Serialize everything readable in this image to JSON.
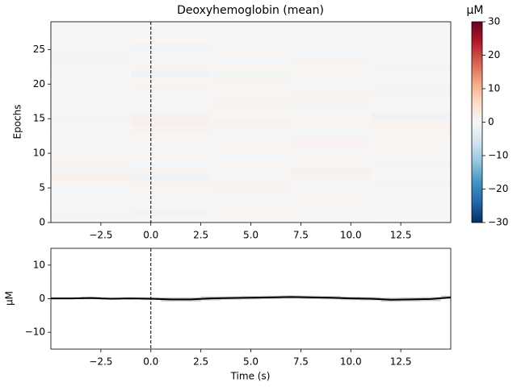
{
  "chart_data": [
    {
      "type": "heatmap",
      "title": "Deoxyhemoglobin (mean)",
      "ylabel": "Epochs",
      "xlim": [
        -5,
        15
      ],
      "ylim": [
        0,
        29
      ],
      "yticks": [
        0,
        5,
        10,
        15,
        20,
        25
      ],
      "xticks": [
        {
          "value": -2.5,
          "label": "−2.5"
        },
        {
          "value": 0,
          "label": "0.0"
        },
        {
          "value": 2.5,
          "label": "2.5"
        },
        {
          "value": 5,
          "label": "5.0"
        },
        {
          "value": 7.5,
          "label": "7.5"
        },
        {
          "value": 10,
          "label": "10.0"
        },
        {
          "value": 12.5,
          "label": "12.5"
        }
      ],
      "vline": 0,
      "x_bins": [
        -5,
        -1,
        3,
        7,
        11,
        15
      ],
      "z": [
        [
          -0.5,
          0.3,
          0.2,
          0.4,
          0.1
        ],
        [
          0.4,
          -0.8,
          0.3,
          0.2,
          -0.3
        ],
        [
          -0.3,
          0.2,
          0.5,
          -0.2,
          0.3
        ],
        [
          0.2,
          -0.5,
          -0.3,
          0.6,
          -0.4
        ],
        [
          -0.4,
          0.3,
          0.4,
          -0.3,
          0.2
        ],
        [
          0.3,
          0.6,
          0.8,
          0.2,
          -0.6
        ],
        [
          1.2,
          -0.9,
          -0.2,
          0.4,
          0.1
        ],
        [
          -0.5,
          0.4,
          0.3,
          1.0,
          -0.2
        ],
        [
          0.6,
          -0.3,
          0.5,
          0.2,
          0.4
        ],
        [
          -0.2,
          0.5,
          -0.4,
          0.3,
          -0.3
        ],
        [
          0.3,
          -0.4,
          0.6,
          -0.2,
          0.5
        ],
        [
          -0.6,
          0.2,
          0.3,
          0.8,
          -0.2
        ],
        [
          0.2,
          0.5,
          -0.3,
          0.4,
          0.3
        ],
        [
          -0.3,
          0.9,
          0.4,
          -0.3,
          0.6
        ],
        [
          0.4,
          1.4,
          0.9,
          0.5,
          0.8
        ],
        [
          -0.5,
          1.0,
          0.5,
          0.3,
          -1.2
        ],
        [
          0.3,
          -0.2,
          0.4,
          -0.5,
          0.2
        ],
        [
          -0.4,
          0.3,
          0.8,
          0.6,
          -0.3
        ],
        [
          0.5,
          -0.3,
          0.3,
          0.9,
          0.4
        ],
        [
          -0.3,
          0.4,
          -0.2,
          0.2,
          -0.7
        ],
        [
          0.2,
          0.5,
          0.6,
          -0.3,
          0.3
        ],
        [
          -0.4,
          -1.0,
          -0.5,
          0.3,
          -0.2
        ],
        [
          0.3,
          0.4,
          0.5,
          0.2,
          0.4
        ],
        [
          -0.5,
          0.2,
          -0.3,
          0.6,
          -0.2
        ],
        [
          0.4,
          -0.3,
          0.5,
          -0.4,
          0.3
        ],
        [
          -0.3,
          -0.8,
          0.2,
          0.4,
          -0.3
        ],
        [
          0.2,
          0.5,
          -0.4,
          0.3,
          0.5
        ],
        [
          -0.4,
          -0.3,
          0.3,
          -0.2,
          0.2
        ],
        [
          0.3,
          0.2,
          -0.5,
          0.4,
          -0.3
        ]
      ],
      "colorbar": {
        "label": "µM",
        "lim": [
          -30,
          30
        ],
        "ticks": [
          {
            "value": -30,
            "label": "−30"
          },
          {
            "value": -20,
            "label": "−20"
          },
          {
            "value": -10,
            "label": "−10"
          },
          0,
          10,
          20,
          30
        ]
      }
    },
    {
      "type": "line",
      "ylabel": "µM",
      "xlabel": "Time (s)",
      "color": "#000000",
      "xlim": [
        -5,
        15
      ],
      "ylim": [
        -15,
        15
      ],
      "yticks": [
        {
          "value": -10,
          "label": "−10"
        },
        0,
        10
      ],
      "xticks": [
        {
          "value": -2.5,
          "label": "−2.5"
        },
        {
          "value": 0,
          "label": "0.0"
        },
        {
          "value": 2.5,
          "label": "2.5"
        },
        {
          "value": 5,
          "label": "5.0"
        },
        {
          "value": 7.5,
          "label": "7.5"
        },
        {
          "value": 10,
          "label": "10.0"
        },
        {
          "value": 12.5,
          "label": "12.5"
        }
      ],
      "vline": 0,
      "x": [
        -5,
        -4,
        -3,
        -2,
        -1,
        0,
        1,
        2,
        3,
        4,
        5,
        6,
        7,
        8,
        9,
        10,
        11,
        12,
        13,
        14,
        15
      ],
      "values": [
        0.1,
        0.1,
        0.2,
        0,
        0.1,
        0,
        -0.2,
        -0.2,
        0.1,
        0.2,
        0.3,
        0.4,
        0.5,
        0.4,
        0.3,
        0.1,
        0,
        -0.3,
        -0.2,
        -0.1,
        0.4
      ],
      "spread": [
        0.3,
        0.3,
        0.4,
        0.3,
        0.3,
        0.4,
        0.6,
        0.6,
        0.6,
        0.5,
        0.5,
        0.5,
        0.5,
        0.5,
        0.5,
        0.5,
        0.5,
        0.6,
        0.6,
        0.6,
        0.5
      ]
    }
  ]
}
